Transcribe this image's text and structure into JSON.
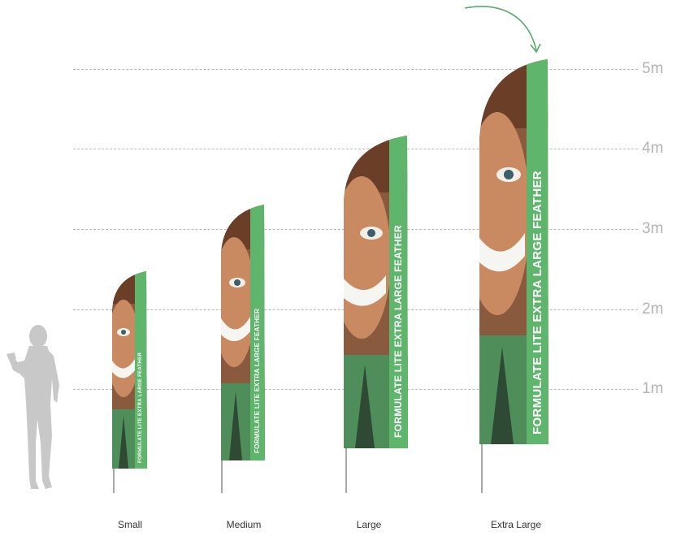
{
  "scale": {
    "ticks": [
      {
        "label": "5m",
        "value": 5
      },
      {
        "label": "4m",
        "value": 4
      },
      {
        "label": "3m",
        "value": 3
      },
      {
        "label": "2m",
        "value": 2
      },
      {
        "label": "1m",
        "value": 1
      }
    ]
  },
  "banner_text": "FORMULATE LITE EXTRA LARGE FEATHER",
  "flags": [
    {
      "label": "Small"
    },
    {
      "label": "Medium"
    },
    {
      "label": "Large"
    },
    {
      "label": "Extra Large"
    }
  ],
  "colors": {
    "banner_green": "#5fb56c",
    "shirt_green": "#4f8e5a",
    "grid": "#b9b9b9",
    "tick_text": "#b3b3b3",
    "person": "#c8c8c8",
    "arrow": "#5aa86a"
  }
}
